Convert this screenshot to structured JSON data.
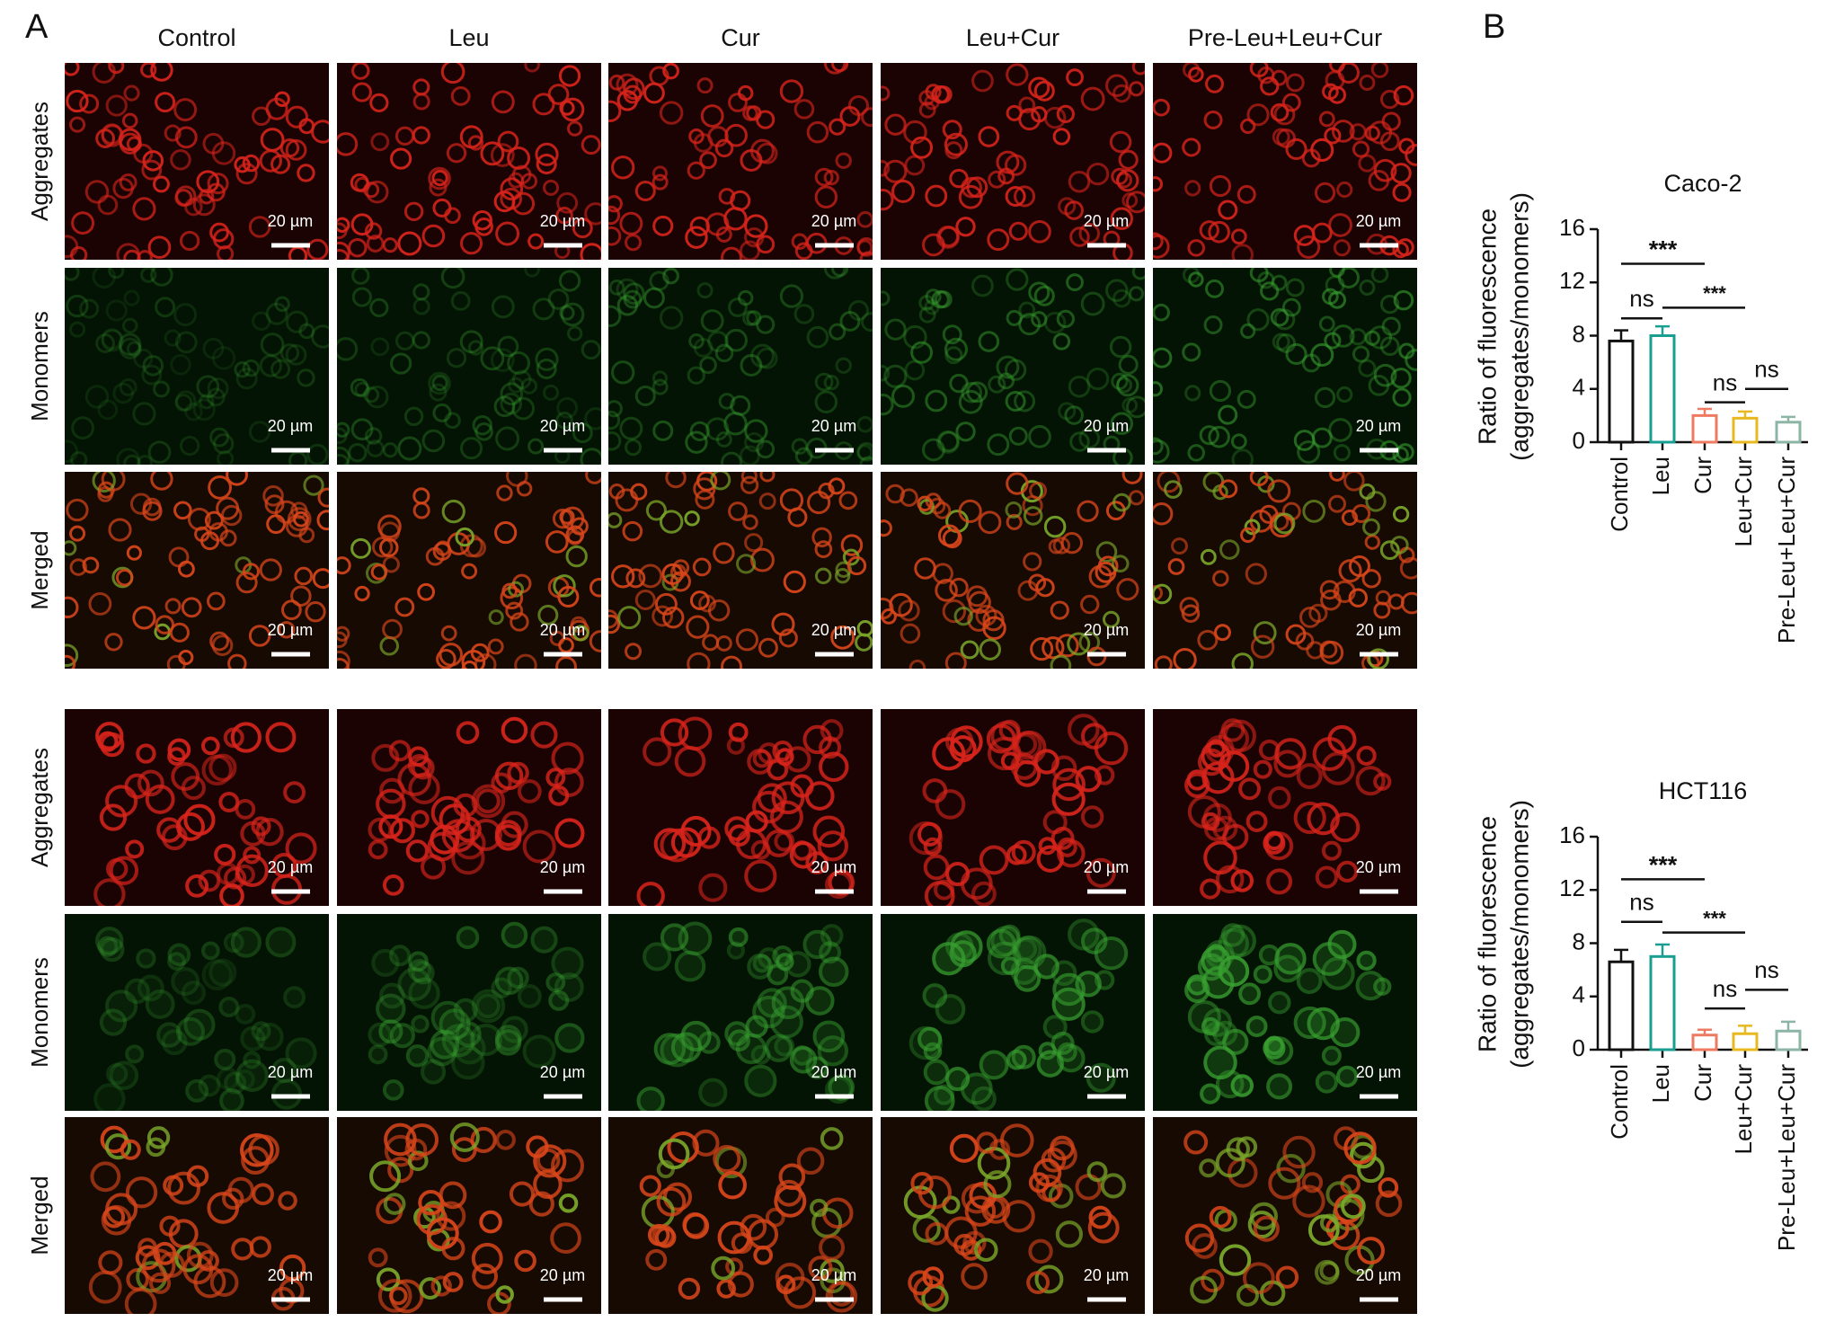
{
  "panel_labels": [
    "A",
    "B"
  ],
  "columns": [
    "Control",
    "Leu",
    "Cur",
    "Leu+Cur",
    "Pre-Leu+Leu+Cur"
  ],
  "rows": [
    "Aggregates",
    "Monomers",
    "Merged"
  ],
  "scale_bar": "20 µm",
  "chart_data": [
    {
      "type": "bar",
      "title": "Caco-2",
      "y_label": [
        "Ratio of fluorescence",
        "(aggregates/monomers)"
      ],
      "categories": [
        "Control",
        "Leu",
        "Cur",
        "Leu+Cur",
        "Pre-Leu+Leu+Cur"
      ],
      "values": [
        7.6,
        8.0,
        2.0,
        1.8,
        1.5
      ],
      "errors": [
        0.8,
        0.7,
        0.5,
        0.5,
        0.4
      ],
      "colors": [
        "#111111",
        "#1a9e92",
        "#ee7a62",
        "#e8b820",
        "#8cb5a6"
      ],
      "ylim": [
        0,
        16
      ],
      "yticks": [
        0,
        4,
        8,
        12,
        16
      ],
      "annotations": [
        {
          "text": "***",
          "from": "Control",
          "to": "Cur"
        },
        {
          "text": "ns",
          "from": "Control",
          "to": "Leu"
        },
        {
          "text": "***",
          "from": "Leu",
          "to": "Leu+Cur"
        },
        {
          "text": "ns",
          "from": "Cur",
          "to": "Leu+Cur"
        },
        {
          "text": "ns",
          "from": "Leu+Cur",
          "to": "Pre-Leu+Leu+Cur"
        }
      ]
    },
    {
      "type": "bar",
      "title": "HCT116",
      "y_label": [
        "Ratio of fluorescence",
        "(aggregates/monomers)"
      ],
      "categories": [
        "Control",
        "Leu",
        "Cur",
        "Leu+Cur",
        "Pre-Leu+Leu+Cur"
      ],
      "values": [
        6.6,
        7.0,
        1.1,
        1.2,
        1.4
      ],
      "errors": [
        0.9,
        0.9,
        0.4,
        0.6,
        0.7
      ],
      "colors": [
        "#111111",
        "#1a9e92",
        "#ee7a62",
        "#e8b820",
        "#8cb5a6"
      ],
      "ylim": [
        0,
        16
      ],
      "yticks": [
        0,
        4,
        8,
        12,
        16
      ],
      "annotations": [
        {
          "text": "***",
          "from": "Control",
          "to": "Cur"
        },
        {
          "text": "ns",
          "from": "Control",
          "to": "Leu"
        },
        {
          "text": "***",
          "from": "Leu",
          "to": "Leu+Cur"
        },
        {
          "text": "ns",
          "from": "Cur",
          "to": "Leu+Cur"
        },
        {
          "text": "ns",
          "from": "Leu+Cur",
          "to": "Pre-Leu+Leu+Cur"
        }
      ]
    }
  ]
}
